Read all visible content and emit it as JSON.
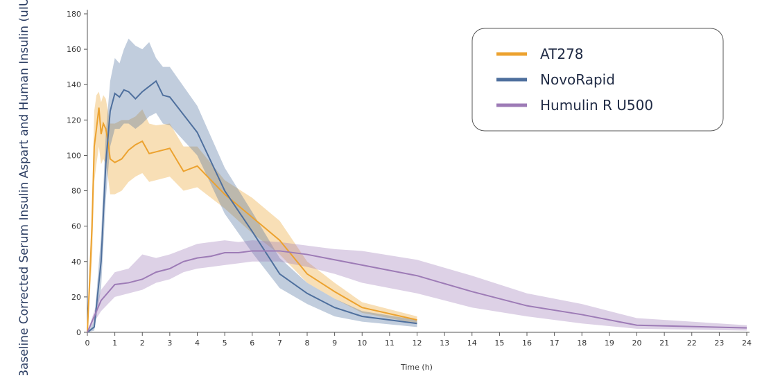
{
  "chart_data": {
    "type": "line",
    "y_label": "Baseline Corrected Serum Insulin Aspart and Human Insulin (uIU/mL)",
    "x_label": "Time (h)",
    "xlim": [
      0,
      24
    ],
    "xticks": [
      0,
      1,
      2,
      3,
      4,
      5,
      6,
      7,
      8,
      9,
      10,
      11,
      12,
      13,
      14,
      15,
      16,
      17,
      18,
      19,
      20,
      21,
      22,
      23,
      24
    ],
    "ylim": [
      0,
      180
    ],
    "yticks": [
      0,
      20,
      40,
      60,
      80,
      100,
      120,
      140,
      160,
      180
    ],
    "grid": false,
    "legend": "upper right",
    "series": [
      {
        "name": "AT278",
        "color": "#eca22f",
        "x": [
          0,
          0.17,
          0.25,
          0.33,
          0.42,
          0.5,
          0.58,
          0.67,
          0.75,
          0.83,
          1,
          1.25,
          1.5,
          1.75,
          2,
          2.25,
          2.5,
          3,
          3.5,
          4,
          5,
          6,
          7,
          8,
          9,
          10,
          12
        ],
        "values": [
          0,
          60,
          105,
          115,
          127,
          112,
          118,
          115,
          108,
          98,
          96,
          98,
          103,
          106,
          108,
          101,
          102,
          104,
          91,
          94,
          78,
          65,
          52,
          33,
          23,
          14,
          7
        ],
        "lower": [
          0,
          40,
          85,
          95,
          105,
          95,
          98,
          95,
          88,
          78,
          78,
          80,
          85,
          88,
          90,
          85,
          86,
          88,
          80,
          82,
          70,
          56,
          44,
          28,
          19,
          11,
          5
        ],
        "upper": [
          0,
          75,
          125,
          134,
          136,
          130,
          134,
          132,
          125,
          118,
          118,
          120,
          120,
          122,
          126,
          118,
          117,
          118,
          105,
          105,
          86,
          76,
          63,
          40,
          28,
          17,
          9
        ]
      },
      {
        "name": "NovoRapid",
        "color": "#4e6f9d",
        "x": [
          0,
          0.25,
          0.5,
          0.67,
          0.83,
          1,
          1.17,
          1.33,
          1.5,
          1.75,
          2,
          2.25,
          2.5,
          2.75,
          3,
          4,
          5,
          6,
          7,
          8,
          9,
          10,
          12
        ],
        "values": [
          0,
          3,
          40,
          95,
          125,
          135,
          133,
          137,
          136,
          132,
          136,
          139,
          142,
          134,
          133,
          113,
          80,
          57,
          33,
          22,
          14,
          9,
          5
        ],
        "lower": [
          0,
          1,
          25,
          75,
          105,
          115,
          115,
          118,
          118,
          115,
          118,
          122,
          124,
          118,
          117,
          100,
          67,
          45,
          25,
          16,
          9,
          6,
          3
        ],
        "upper": [
          0,
          6,
          55,
          112,
          142,
          155,
          152,
          160,
          166,
          162,
          160,
          164,
          155,
          150,
          150,
          128,
          93,
          68,
          42,
          28,
          19,
          12,
          7
        ]
      },
      {
        "name": "Humulin R U500",
        "color": "#9d7bb6",
        "x": [
          0,
          0.5,
          1,
          1.5,
          2,
          2.5,
          3,
          3.5,
          4,
          4.5,
          5,
          5.5,
          6,
          7,
          8,
          9,
          10,
          12,
          14,
          16,
          18,
          20,
          24
        ],
        "values": [
          0,
          18,
          27,
          28,
          30,
          34,
          36,
          40,
          42,
          43,
          45,
          45,
          46,
          46,
          44,
          41,
          38,
          32,
          23,
          15,
          10,
          4,
          2.5
        ],
        "lower": [
          0,
          12,
          20,
          22,
          24,
          28,
          30,
          34,
          36,
          37,
          38,
          39,
          40,
          40,
          37,
          33,
          28,
          22,
          14,
          9,
          5,
          2,
          1
        ],
        "upper": [
          0,
          24,
          34,
          36,
          44,
          42,
          44,
          47,
          50,
          51,
          52,
          51,
          52,
          51,
          49,
          47,
          46,
          41,
          32,
          22,
          16,
          8,
          4
        ]
      }
    ]
  }
}
